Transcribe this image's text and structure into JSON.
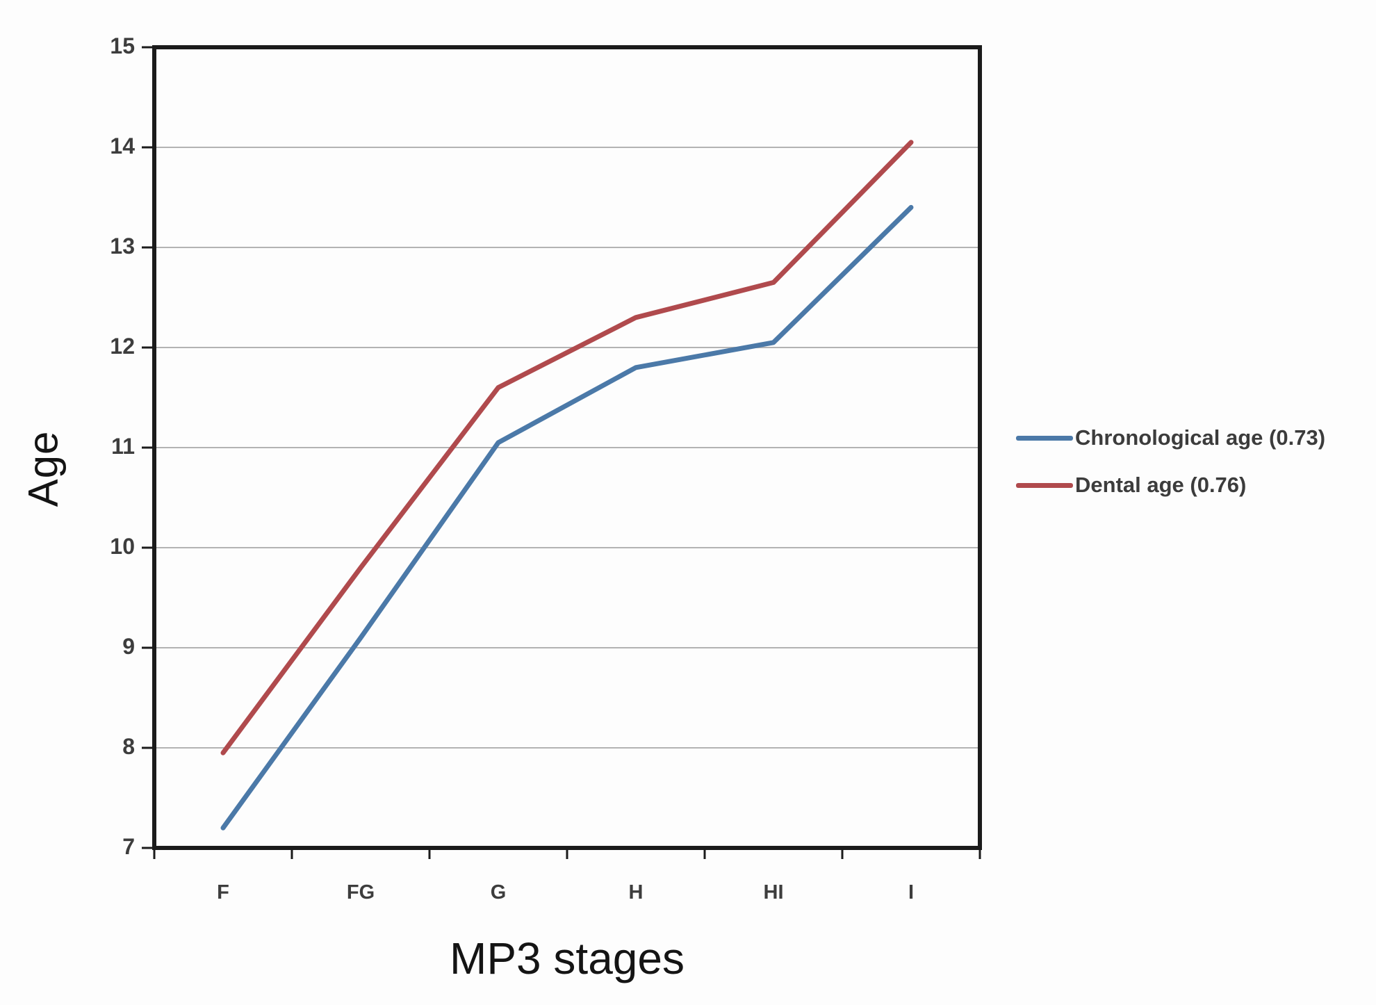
{
  "chart_data": {
    "type": "line",
    "title": "",
    "xlabel": "MP3 stages",
    "ylabel": "Age",
    "categories": [
      "F",
      "FG",
      "G",
      "H",
      "HI",
      "I"
    ],
    "series": [
      {
        "name": "Chronological age (0.73)",
        "color": "#4b79a8",
        "values": [
          7.2,
          9.1,
          11.05,
          11.8,
          12.05,
          13.4
        ]
      },
      {
        "name": "Dental age (0.76)",
        "color": "#b04a4d",
        "values": [
          7.95,
          9.8,
          11.6,
          12.3,
          12.65,
          14.05
        ]
      }
    ],
    "ylim": [
      7,
      15
    ],
    "yticks": [
      7,
      8,
      9,
      10,
      11,
      12,
      13,
      14,
      15
    ],
    "grid": true,
    "legend_position": "right",
    "frame_color": "#1b1b1b",
    "gridline_color": "#b3b3b3"
  }
}
